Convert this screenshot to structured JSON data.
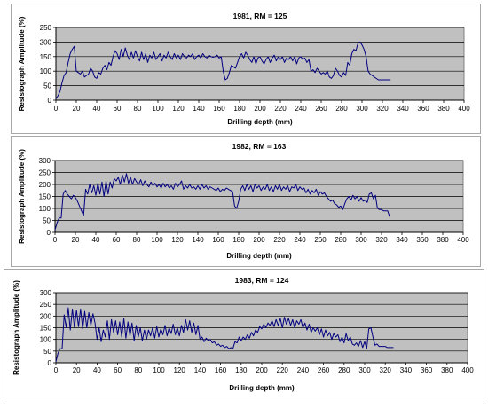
{
  "chart_data": [
    {
      "type": "line",
      "title": "1981, RM = 125",
      "xlabel": "Drilling depth (mm)",
      "ylabel": "Resistograph Amplitude (%)",
      "xlim": [
        0,
        400
      ],
      "ylim": [
        0,
        250
      ],
      "xticks": [
        0,
        20,
        40,
        60,
        80,
        100,
        120,
        140,
        160,
        180,
        200,
        220,
        240,
        260,
        280,
        300,
        320,
        340,
        360,
        380,
        400
      ],
      "yticks": [
        0,
        50,
        100,
        150,
        200,
        250
      ],
      "grid": true,
      "plot_background": "#c0c0c0",
      "line_color": "#000080",
      "series": [
        {
          "x": [
            0,
            2,
            4,
            6,
            8,
            10,
            12,
            14,
            16,
            18,
            20,
            22,
            24,
            26,
            28,
            30,
            32,
            34,
            36,
            38,
            40,
            42,
            44,
            46,
            48,
            50,
            52,
            54,
            56,
            58,
            60,
            62,
            64,
            66,
            68,
            70,
            72,
            74,
            76,
            78,
            80,
            82,
            84,
            86,
            88,
            90,
            92,
            94,
            96,
            98,
            100,
            102,
            104,
            106,
            108,
            110,
            112,
            114,
            116,
            118,
            120,
            122,
            124,
            126,
            128,
            130,
            132,
            134,
            136,
            138,
            140,
            142,
            144,
            146,
            148,
            150,
            152,
            154,
            156,
            158,
            160,
            162,
            164,
            166,
            168,
            170,
            172,
            174,
            176,
            178,
            180,
            182,
            184,
            186,
            188,
            190,
            192,
            194,
            196,
            198,
            200,
            202,
            204,
            206,
            208,
            210,
            212,
            214,
            216,
            218,
            220,
            222,
            224,
            226,
            228,
            230,
            232,
            234,
            236,
            238,
            240,
            242,
            244,
            246,
            248,
            250,
            252,
            254,
            256,
            258,
            260,
            262,
            264,
            266,
            268,
            270,
            272,
            274,
            276,
            278,
            280,
            282,
            284,
            286,
            288,
            290,
            292,
            294,
            296,
            298,
            300,
            302,
            304,
            306,
            308,
            310,
            312,
            314,
            316,
            318,
            320,
            322,
            324,
            326,
            328
          ],
          "y": [
            5,
            15,
            30,
            60,
            85,
            95,
            130,
            160,
            175,
            185,
            100,
            95,
            90,
            100,
            80,
            85,
            90,
            110,
            100,
            80,
            75,
            95,
            90,
            110,
            120,
            105,
            130,
            120,
            150,
            170,
            160,
            140,
            175,
            150,
            180,
            155,
            140,
            165,
            145,
            170,
            150,
            135,
            165,
            140,
            160,
            130,
            155,
            145,
            165,
            140,
            150,
            160,
            135,
            155,
            145,
            165,
            150,
            140,
            160,
            145,
            155,
            140,
            160,
            150,
            145,
            155,
            150,
            160,
            140,
            150,
            155,
            145,
            160,
            150,
            145,
            155,
            150,
            148,
            150,
            155,
            145,
            150,
            100,
            70,
            75,
            95,
            120,
            115,
            110,
            130,
            150,
            160,
            145,
            165,
            155,
            140,
            130,
            150,
            125,
            145,
            150,
            135,
            125,
            140,
            150,
            130,
            145,
            155,
            135,
            150,
            140,
            150,
            130,
            145,
            140,
            150,
            135,
            150,
            125,
            145,
            150,
            140,
            145,
            130,
            140,
            100,
            105,
            95,
            110,
            100,
            90,
            95,
            90,
            100,
            80,
            75,
            85,
            110,
            100,
            85,
            80,
            95,
            85,
            130,
            120,
            160,
            175,
            170,
            195,
            200,
            190,
            175,
            150,
            100,
            90,
            85,
            80,
            75,
            70,
            70,
            70,
            70,
            70,
            70,
            70
          ]
        }
      ]
    },
    {
      "type": "line",
      "title": "1982, RM = 163",
      "xlabel": "Drilling depth (mm)",
      "ylabel": "Resistograph Amplitude (%)",
      "xlim": [
        0,
        400
      ],
      "ylim": [
        0,
        300
      ],
      "xticks": [
        0,
        20,
        40,
        60,
        80,
        100,
        120,
        140,
        160,
        180,
        200,
        220,
        240,
        260,
        280,
        300,
        320,
        340,
        360,
        380,
        400
      ],
      "yticks": [
        0,
        50,
        100,
        150,
        200,
        250,
        300
      ],
      "grid": true,
      "plot_background": "#c0c0c0",
      "line_color": "#000080",
      "series": [
        {
          "x": [
            0,
            2,
            4,
            6,
            8,
            10,
            12,
            14,
            16,
            18,
            20,
            22,
            24,
            26,
            28,
            30,
            32,
            34,
            36,
            38,
            40,
            42,
            44,
            46,
            48,
            50,
            52,
            54,
            56,
            58,
            60,
            62,
            64,
            66,
            68,
            70,
            72,
            74,
            76,
            78,
            80,
            82,
            84,
            86,
            88,
            90,
            92,
            94,
            96,
            98,
            100,
            102,
            104,
            106,
            108,
            110,
            112,
            114,
            116,
            118,
            120,
            122,
            124,
            126,
            128,
            130,
            132,
            134,
            136,
            138,
            140,
            142,
            144,
            146,
            148,
            150,
            152,
            154,
            156,
            158,
            160,
            162,
            164,
            166,
            168,
            170,
            172,
            174,
            176,
            178,
            180,
            182,
            184,
            186,
            188,
            190,
            192,
            194,
            196,
            198,
            200,
            202,
            204,
            206,
            208,
            210,
            212,
            214,
            216,
            218,
            220,
            222,
            224,
            226,
            228,
            230,
            232,
            234,
            236,
            238,
            240,
            242,
            244,
            246,
            248,
            250,
            252,
            254,
            256,
            258,
            260,
            262,
            264,
            266,
            268,
            270,
            272,
            274,
            276,
            278,
            280,
            282,
            284,
            286,
            288,
            290,
            292,
            294,
            296,
            298,
            300,
            302,
            304,
            306,
            308,
            310,
            312,
            314,
            316,
            318,
            320,
            322,
            324,
            326,
            328
          ],
          "y": [
            10,
            40,
            60,
            60,
            160,
            175,
            160,
            150,
            140,
            155,
            145,
            130,
            110,
            90,
            70,
            180,
            160,
            200,
            165,
            195,
            155,
            205,
            160,
            210,
            150,
            215,
            160,
            210,
            185,
            225,
            215,
            230,
            200,
            240,
            210,
            245,
            205,
            230,
            200,
            225,
            210,
            200,
            220,
            195,
            215,
            200,
            190,
            210,
            195,
            205,
            190,
            200,
            185,
            205,
            190,
            200,
            185,
            195,
            180,
            205,
            190,
            200,
            215,
            180,
            195,
            185,
            200,
            185,
            190,
            180,
            195,
            180,
            200,
            185,
            195,
            180,
            190,
            185,
            180,
            175,
            185,
            170,
            180,
            175,
            185,
            180,
            175,
            170,
            110,
            100,
            130,
            180,
            195,
            175,
            200,
            180,
            195,
            170,
            200,
            185,
            195,
            175,
            190,
            180,
            200,
            175,
            190,
            170,
            195,
            180,
            200,
            175,
            190,
            180,
            195,
            170,
            190,
            185,
            200,
            175,
            190,
            180,
            185,
            165,
            180,
            160,
            175,
            165,
            180,
            155,
            170,
            160,
            165,
            150,
            140,
            130,
            135,
            120,
            115,
            105,
            110,
            95,
            120,
            140,
            150,
            135,
            155,
            140,
            150,
            130,
            145,
            130,
            135,
            125,
            160,
            165,
            140,
            155,
            100,
            95,
            95,
            90,
            90,
            90,
            65
          ]
        }
      ]
    },
    {
      "type": "line",
      "title": "1983, RM = 124",
      "xlabel": "Drilling depth (mm)",
      "ylabel": "Resistograph Amplitude (%)",
      "xlim": [
        0,
        400
      ],
      "ylim": [
        0,
        300
      ],
      "xticks": [
        0,
        20,
        40,
        60,
        80,
        100,
        120,
        140,
        160,
        180,
        200,
        220,
        240,
        260,
        280,
        300,
        320,
        340,
        360,
        380,
        400
      ],
      "yticks": [
        0,
        50,
        100,
        150,
        200,
        250,
        300
      ],
      "grid": true,
      "plot_background": "#c0c0c0",
      "line_color": "#000080",
      "series": [
        {
          "x": [
            0,
            2,
            4,
            6,
            8,
            10,
            12,
            14,
            16,
            18,
            20,
            22,
            24,
            26,
            28,
            30,
            32,
            34,
            36,
            38,
            40,
            42,
            44,
            46,
            48,
            50,
            52,
            54,
            56,
            58,
            60,
            62,
            64,
            66,
            68,
            70,
            72,
            74,
            76,
            78,
            80,
            82,
            84,
            86,
            88,
            90,
            92,
            94,
            96,
            98,
            100,
            102,
            104,
            106,
            108,
            110,
            112,
            114,
            116,
            118,
            120,
            122,
            124,
            126,
            128,
            130,
            132,
            134,
            136,
            138,
            140,
            142,
            144,
            146,
            148,
            150,
            152,
            154,
            156,
            158,
            160,
            162,
            164,
            166,
            168,
            170,
            172,
            174,
            176,
            178,
            180,
            182,
            184,
            186,
            188,
            190,
            192,
            194,
            196,
            198,
            200,
            202,
            204,
            206,
            208,
            210,
            212,
            214,
            216,
            218,
            220,
            222,
            224,
            226,
            228,
            230,
            232,
            234,
            236,
            238,
            240,
            242,
            244,
            246,
            248,
            250,
            252,
            254,
            256,
            258,
            260,
            262,
            264,
            266,
            268,
            270,
            272,
            274,
            276,
            278,
            280,
            282,
            284,
            286,
            288,
            290,
            292,
            294,
            296,
            298,
            300,
            302,
            304,
            306,
            308,
            310,
            312,
            314,
            316,
            318,
            320,
            322,
            324,
            326,
            328
          ],
          "y": [
            5,
            40,
            60,
            60,
            205,
            150,
            235,
            140,
            230,
            150,
            225,
            155,
            230,
            145,
            220,
            150,
            215,
            160,
            210,
            170,
            100,
            150,
            90,
            140,
            110,
            180,
            100,
            185,
            130,
            180,
            120,
            175,
            110,
            190,
            105,
            175,
            115,
            170,
            95,
            160,
            110,
            150,
            95,
            140,
            100,
            140,
            115,
            150,
            105,
            155,
            110,
            145,
            120,
            160,
            115,
            150,
            125,
            165,
            120,
            150,
            115,
            160,
            130,
            185,
            140,
            180,
            130,
            170,
            120,
            160,
            100,
            110,
            90,
            105,
            95,
            100,
            85,
            90,
            75,
            80,
            70,
            75,
            65,
            70,
            60,
            65,
            60,
            90,
            85,
            110,
            95,
            110,
            100,
            120,
            105,
            130,
            115,
            140,
            130,
            155,
            145,
            165,
            150,
            170,
            160,
            180,
            155,
            185,
            160,
            190,
            150,
            195,
            165,
            190,
            160,
            185,
            150,
            180,
            165,
            185,
            150,
            170,
            140,
            165,
            130,
            150,
            135,
            150,
            120,
            145,
            110,
            140,
            115,
            130,
            100,
            125,
            110,
            120,
            90,
            110,
            85,
            125,
            95,
            110,
            80,
            75,
            85,
            70,
            95,
            65,
            90,
            60,
            145,
            150,
            110,
            75,
            80,
            70,
            70,
            70,
            70,
            65,
            65,
            65,
            65
          ]
        }
      ]
    }
  ]
}
